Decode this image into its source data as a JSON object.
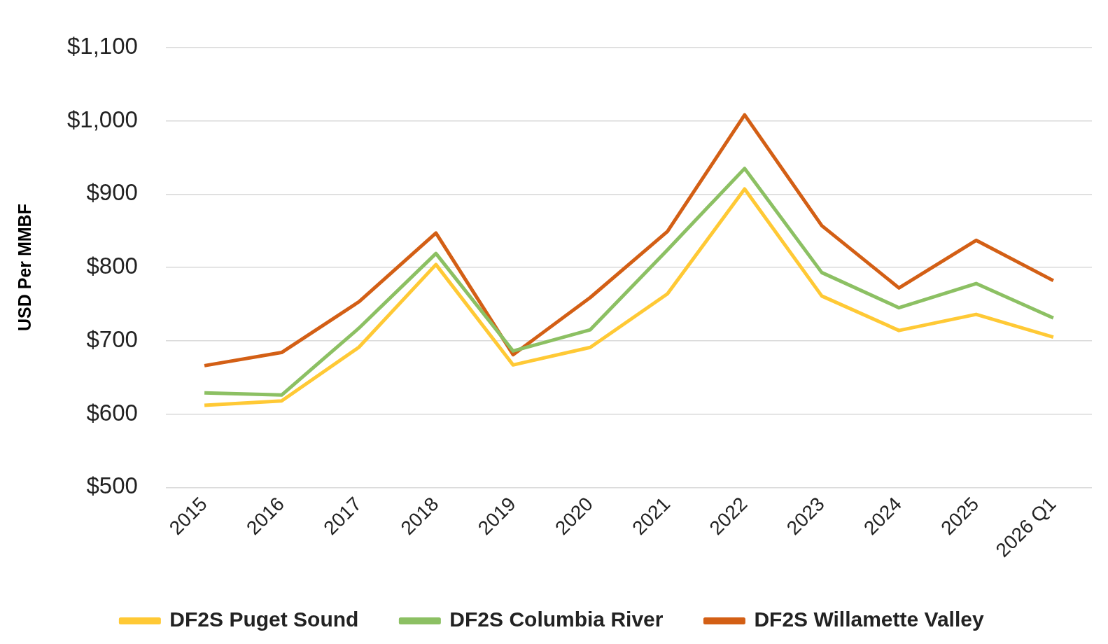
{
  "chart_data": {
    "type": "line",
    "ylabel": "USD Per MMBF",
    "categories": [
      "2015",
      "2016",
      "2017",
      "2018",
      "2019",
      "2020",
      "2021",
      "2022",
      "2023",
      "2024",
      "2025",
      "2026 Q1"
    ],
    "series": [
      {
        "name": "DF2S Puget Sound",
        "color": "#ffc935",
        "values": [
          612,
          618,
          691,
          804,
          667,
          691,
          764,
          907,
          761,
          714,
          736,
          705
        ]
      },
      {
        "name": "DF2S Columbia River",
        "color": "#8cc063",
        "values": [
          629,
          626,
          717,
          819,
          686,
          715,
          824,
          935,
          793,
          745,
          778,
          731
        ]
      },
      {
        "name": "DF2S Willamette Valley",
        "color": "#d35f15",
        "values": [
          666,
          684,
          753,
          847,
          681,
          759,
          849,
          1008,
          857,
          772,
          837,
          782
        ]
      }
    ],
    "ylim": [
      500,
      1100
    ],
    "yticks": [
      {
        "value": 500,
        "label": "$500"
      },
      {
        "value": 600,
        "label": "$600"
      },
      {
        "value": 700,
        "label": "$700"
      },
      {
        "value": 800,
        "label": "$800"
      },
      {
        "value": 900,
        "label": "$900"
      },
      {
        "value": 1000,
        "label": "$1,000"
      },
      {
        "value": 1100,
        "label": "$1,100"
      }
    ],
    "grid": "y",
    "legend": "bottom",
    "marker": "none",
    "line_style": "solid"
  }
}
